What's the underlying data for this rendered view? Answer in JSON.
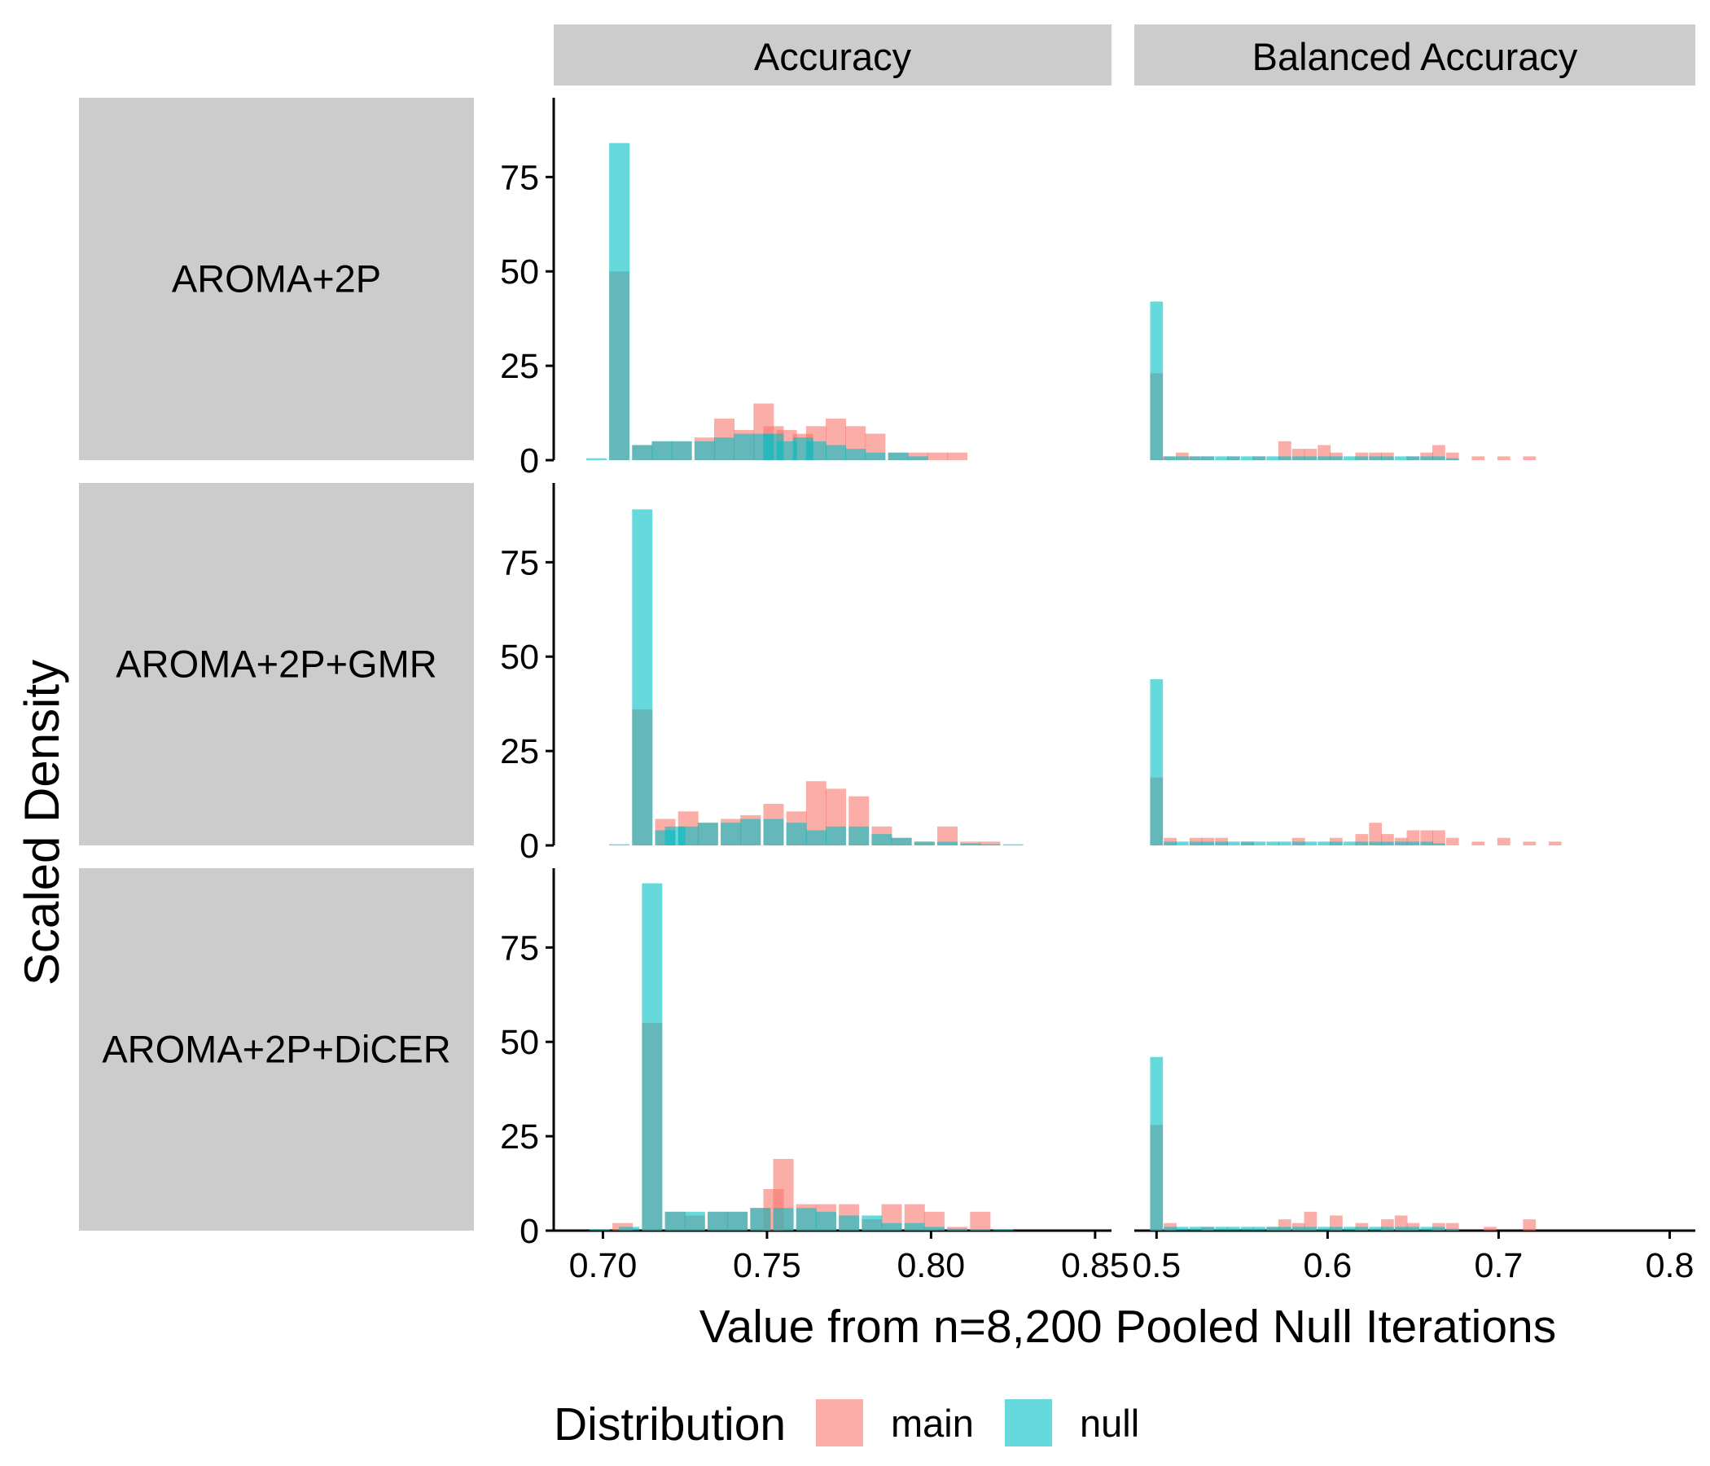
{
  "chart_data": {
    "type": "bar",
    "facet_columns": [
      "Accuracy",
      "Balanced Accuracy"
    ],
    "facet_rows": [
      "AROMA+2P",
      "AROMA+2P+GMR",
      "AROMA+2P+DiCER"
    ],
    "xlabel": "Value from n=8,200 Pooled Null Iterations",
    "ylabel": "Scaled Density",
    "ylim": [
      0,
      96
    ],
    "yticks": [
      0,
      25,
      50,
      75
    ],
    "xaxes": [
      {
        "xlim": [
          0.685,
          0.855
        ],
        "ticks": [
          0.7,
          0.75,
          0.8,
          0.85
        ],
        "tick_labels": [
          "0.70",
          "0.75",
          "0.80",
          "0.85"
        ]
      },
      {
        "xlim": [
          0.487,
          0.815
        ],
        "ticks": [
          0.5,
          0.6,
          0.7,
          0.8
        ],
        "tick_labels": [
          "0.5",
          "0.6",
          "0.7",
          "0.8"
        ]
      }
    ],
    "legend": {
      "title": "Distribution",
      "position": "bottom",
      "entries": [
        "main",
        "null"
      ]
    },
    "colors": {
      "main": "#F8766D",
      "null": "#00BFC4",
      "strip": "#CCCCCC"
    },
    "series": [
      {
        "name": "main",
        "facets": [
          {
            "row": 0,
            "col": 0,
            "bin_width": 0.0062,
            "x": [
              0.705,
              0.712,
              0.718,
              0.724,
              0.731,
              0.737,
              0.743,
              0.749,
              0.752,
              0.756,
              0.761,
              0.765,
              0.771,
              0.777,
              0.783,
              0.79,
              0.796,
              0.802,
              0.808
            ],
            "y": [
              50,
              4,
              5,
              5,
              6,
              11,
              8,
              15,
              9,
              8,
              7,
              9,
              11,
              9,
              7,
              2,
              2,
              2,
              2
            ]
          },
          {
            "row": 0,
            "col": 1,
            "bin_width": 0.0075,
            "x": [
              0.5,
              0.507,
              0.515,
              0.522,
              0.53,
              0.545,
              0.56,
              0.575,
              0.583,
              0.59,
              0.598,
              0.605,
              0.62,
              0.628,
              0.635,
              0.65,
              0.658,
              0.665,
              0.673,
              0.688,
              0.703,
              0.718
            ],
            "y": [
              23,
              1,
              2,
              1,
              1,
              1,
              1,
              5,
              3,
              3,
              4,
              2,
              2,
              2,
              2,
              1,
              2,
              4,
              2,
              1,
              1,
              1
            ]
          },
          {
            "row": 1,
            "col": 0,
            "bin_width": 0.0062,
            "x": [
              0.712,
              0.719,
              0.726,
              0.732,
              0.739,
              0.745,
              0.752,
              0.759,
              0.765,
              0.771,
              0.778,
              0.785,
              0.791,
              0.798,
              0.805,
              0.812,
              0.818
            ],
            "y": [
              36,
              7,
              9,
              6,
              7,
              8,
              11,
              9,
              17,
              15,
              13,
              5,
              2,
              1,
              5,
              1,
              1
            ]
          },
          {
            "row": 1,
            "col": 1,
            "bin_width": 0.0075,
            "x": [
              0.5,
              0.508,
              0.523,
              0.53,
              0.538,
              0.553,
              0.583,
              0.605,
              0.62,
              0.628,
              0.635,
              0.643,
              0.65,
              0.658,
              0.665,
              0.673,
              0.688,
              0.703,
              0.718,
              0.733
            ],
            "y": [
              18,
              2,
              2,
              2,
              2,
              1,
              2,
              2,
              3,
              6,
              3,
              2,
              4,
              4,
              4,
              2,
              1,
              2,
              1,
              1
            ]
          },
          {
            "row": 2,
            "col": 0,
            "bin_width": 0.0062,
            "x": [
              0.706,
              0.715,
              0.722,
              0.728,
              0.735,
              0.741,
              0.748,
              0.752,
              0.755,
              0.762,
              0.768,
              0.775,
              0.782,
              0.788,
              0.795,
              0.801,
              0.808,
              0.815
            ],
            "y": [
              2,
              55,
              5,
              4,
              5,
              5,
              6,
              11,
              19,
              7,
              7,
              7,
              3,
              7,
              7,
              5,
              1,
              5
            ]
          },
          {
            "row": 2,
            "col": 1,
            "bin_width": 0.0075,
            "x": [
              0.5,
              0.508,
              0.53,
              0.568,
              0.575,
              0.583,
              0.59,
              0.605,
              0.62,
              0.635,
              0.643,
              0.65,
              0.665,
              0.673,
              0.695,
              0.718
            ],
            "y": [
              28,
              2,
              1,
              1,
              3,
              2,
              5,
              4,
              2,
              3,
              4,
              2,
              2,
              2,
              1,
              3
            ]
          }
        ]
      },
      {
        "name": "null",
        "facets": [
          {
            "row": 0,
            "col": 0,
            "bin_width": 0.0062,
            "x": [
              0.698,
              0.705,
              0.712,
              0.718,
              0.724,
              0.731,
              0.737,
              0.743,
              0.749,
              0.752,
              0.756,
              0.761,
              0.765,
              0.771,
              0.777,
              0.783,
              0.79,
              0.796
            ],
            "y": [
              0.5,
              84,
              4,
              5,
              5,
              5,
              6,
              7,
              7,
              7,
              5,
              6,
              5,
              4,
              3,
              2,
              2,
              1
            ]
          },
          {
            "row": 0,
            "col": 1,
            "bin_width": 0.0075,
            "x": [
              0.5,
              0.508,
              0.515,
              0.523,
              0.53,
              0.538,
              0.545,
              0.553,
              0.56,
              0.568,
              0.575,
              0.583,
              0.59,
              0.598,
              0.605,
              0.613,
              0.62,
              0.628,
              0.635,
              0.643,
              0.65,
              0.658,
              0.665,
              0.673
            ],
            "y": [
              42,
              1,
              1,
              1,
              1,
              1,
              1,
              1,
              1,
              1,
              1,
              1,
              1,
              1,
              1,
              1,
              1,
              1,
              1,
              1,
              1,
              1,
              1,
              0.5
            ]
          },
          {
            "row": 1,
            "col": 0,
            "bin_width": 0.0062,
            "x": [
              0.705,
              0.712,
              0.719,
              0.722,
              0.726,
              0.732,
              0.739,
              0.745,
              0.752,
              0.759,
              0.765,
              0.771,
              0.778,
              0.785,
              0.791,
              0.798,
              0.805,
              0.812,
              0.818,
              0.825
            ],
            "y": [
              0.3,
              89,
              4,
              5,
              5,
              6,
              6,
              7,
              7,
              6,
              4,
              5,
              5,
              3,
              2,
              1,
              1,
              0.5,
              0.3,
              0.3
            ]
          },
          {
            "row": 1,
            "col": 1,
            "bin_width": 0.0075,
            "x": [
              0.5,
              0.508,
              0.515,
              0.523,
              0.53,
              0.538,
              0.545,
              0.553,
              0.56,
              0.568,
              0.575,
              0.583,
              0.59,
              0.598,
              0.605,
              0.613,
              0.62,
              0.628,
              0.635,
              0.643,
              0.65,
              0.658,
              0.665
            ],
            "y": [
              44,
              1,
              1,
              1,
              1,
              1,
              1,
              1,
              1,
              1,
              1,
              1,
              1,
              1,
              1,
              1,
              1,
              1,
              1,
              1,
              1,
              1,
              0.5
            ]
          },
          {
            "row": 2,
            "col": 0,
            "bin_width": 0.0062,
            "x": [
              0.699,
              0.708,
              0.715,
              0.722,
              0.728,
              0.735,
              0.741,
              0.748,
              0.755,
              0.762,
              0.768,
              0.775,
              0.782,
              0.788,
              0.795,
              0.801,
              0.808,
              0.815,
              0.822
            ],
            "y": [
              0.3,
              1,
              92,
              5,
              5,
              5,
              5,
              6,
              6,
              6,
              5,
              4,
              4,
              2,
              2,
              1,
              0.5,
              0.3,
              0.3
            ]
          },
          {
            "row": 2,
            "col": 1,
            "bin_width": 0.0075,
            "x": [
              0.5,
              0.508,
              0.515,
              0.523,
              0.53,
              0.538,
              0.545,
              0.553,
              0.56,
              0.568,
              0.575,
              0.583,
              0.59,
              0.598,
              0.605,
              0.613,
              0.62,
              0.628,
              0.635,
              0.643,
              0.65,
              0.658,
              0.665,
              0.673
            ],
            "y": [
              46,
              1,
              1,
              1,
              1,
              1,
              1,
              1,
              1,
              1,
              1,
              1,
              1,
              1,
              1,
              1,
              1,
              1,
              1,
              1,
              1,
              1,
              1,
              0.5
            ]
          }
        ]
      }
    ]
  }
}
